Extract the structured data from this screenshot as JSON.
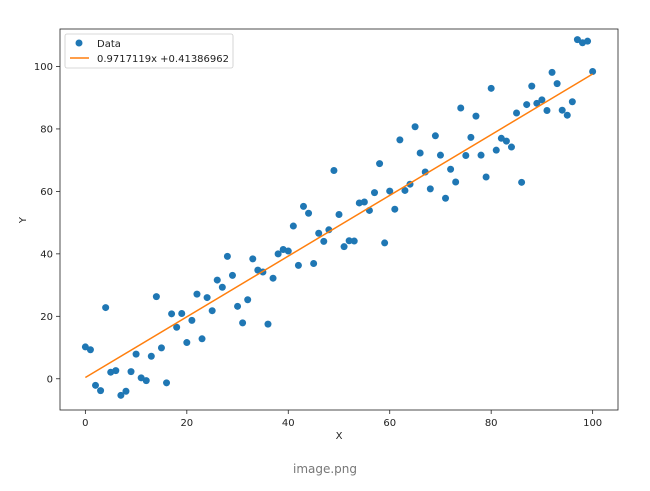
{
  "caption": "image.png",
  "colors": {
    "points": "#1f77b4",
    "fit_line": "#ff7f0e",
    "axes": "#222222"
  },
  "chart_data": {
    "type": "scatter",
    "title": "",
    "xlabel": "X",
    "ylabel": "Y",
    "xlim": [
      -5,
      105
    ],
    "ylim": [
      -10,
      112
    ],
    "xticks": [
      0,
      20,
      40,
      60,
      80,
      100
    ],
    "yticks": [
      0,
      20,
      40,
      60,
      80,
      100
    ],
    "grid": false,
    "legend_position": "top-left",
    "series": [
      {
        "name": "Data",
        "kind": "scatter",
        "x": [
          0,
          1,
          2,
          3,
          4,
          5,
          6,
          7,
          8,
          9,
          10,
          11,
          12,
          13,
          14,
          15,
          16,
          17,
          18,
          19,
          20,
          21,
          22,
          23,
          24,
          25,
          26,
          27,
          28,
          29,
          30,
          31,
          32,
          33,
          34,
          35,
          36,
          37,
          38,
          39,
          40,
          41,
          42,
          43,
          44,
          45,
          46,
          47,
          48,
          49,
          50,
          51,
          52,
          53,
          54,
          55,
          56,
          57,
          58,
          59,
          60,
          61,
          62,
          63,
          64,
          65,
          66,
          67,
          68,
          69,
          70,
          71,
          72,
          73,
          74,
          75,
          76,
          77,
          78,
          79,
          80,
          81,
          82,
          83,
          84,
          85,
          86,
          87,
          88,
          89,
          90,
          91,
          92,
          93,
          94,
          95,
          96,
          97,
          98,
          99,
          100
        ],
        "y": [
          10.2,
          9.3,
          -2.1,
          -3.8,
          22.8,
          2.1,
          2.6,
          -5.3,
          -4.0,
          2.3,
          7.9,
          0.3,
          -0.6,
          7.2,
          26.3,
          9.9,
          -1.3,
          20.8,
          16.5,
          20.9,
          11.6,
          18.7,
          27.1,
          12.8,
          26.0,
          21.8,
          31.6,
          29.3,
          39.2,
          33.1,
          23.2,
          17.9,
          25.3,
          38.4,
          34.8,
          34.2,
          17.5,
          32.2,
          40.0,
          41.4,
          40.9,
          48.9,
          36.3,
          55.2,
          53.0,
          36.9,
          46.6,
          44.0,
          47.7,
          66.7,
          52.6,
          42.3,
          44.2,
          44.1,
          56.3,
          56.6,
          53.9,
          59.6,
          68.9,
          43.5,
          60.1,
          54.3,
          76.5,
          60.3,
          62.3,
          80.7,
          72.3,
          66.2,
          60.8,
          77.8,
          71.6,
          57.8,
          67.1,
          63.0,
          86.7,
          71.5,
          77.3,
          84.1,
          71.6,
          64.6,
          93.0,
          73.2,
          77.0,
          76.1,
          74.2,
          85.1,
          62.9,
          87.8,
          93.7,
          88.2,
          89.3,
          85.9,
          98.1,
          94.5,
          86.0,
          84.4,
          88.7,
          108.6,
          107.6,
          108.1,
          98.4
        ]
      },
      {
        "name": "0.9717119x +0.41386962",
        "kind": "line",
        "slope": 0.9717119,
        "intercept": 0.41386962,
        "x": [
          0,
          100
        ]
      }
    ]
  }
}
